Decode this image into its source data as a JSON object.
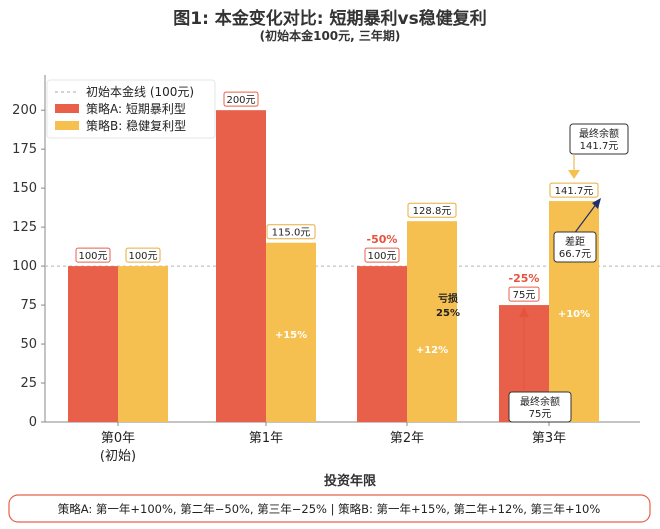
{
  "chart_data": {
    "type": "bar",
    "title": "图1: 本金变化对比: 短期暴利vs稳健复利",
    "subtitle": "(初始本金100元, 三年期)",
    "xlabel": "投资年限",
    "ylabel": "",
    "ylim": [
      0,
      220
    ],
    "yticks": [
      0,
      25,
      50,
      75,
      100,
      125,
      150,
      175,
      200
    ],
    "categories": [
      {
        "line1": "第0年",
        "line2": "(初始)"
      },
      {
        "line1": "第1年",
        "line2": ""
      },
      {
        "line1": "第2年",
        "line2": ""
      },
      {
        "line1": "第3年",
        "line2": ""
      }
    ],
    "series": [
      {
        "name": "策略A: 短期暴利型",
        "color": "#e8604a",
        "values": [
          100,
          200,
          100,
          75
        ],
        "labels": [
          "100元",
          "200元",
          "100元",
          "75元"
        ]
      },
      {
        "name": "策略B: 稳健复利型",
        "color": "#f5c04f",
        "values": [
          100,
          115,
          128.8,
          141.7
        ],
        "labels": [
          "100元",
          "115.0元",
          "128.8元",
          "141.7元"
        ]
      }
    ],
    "baseline": {
      "value": 100,
      "label": "初始本金线 (100元)"
    },
    "legend_position": "top-left",
    "grid": false,
    "annotations": {
      "pct_b": [
        "+15%",
        "+12%",
        "+10%"
      ],
      "pct_a": [
        "-50%",
        "-25%"
      ],
      "loss": [
        "亏损",
        "25%"
      ],
      "gap": [
        "差距",
        "66.7元"
      ],
      "final_a": [
        "最终余额",
        "75元"
      ],
      "final_b": [
        "最终余额",
        "141.7元"
      ]
    },
    "footnote": "策略A: 第一年+100%, 第二年−50%, 第三年−25% | 策略B: 第一年+15%, 第二年+12%, 第三年+10%"
  }
}
